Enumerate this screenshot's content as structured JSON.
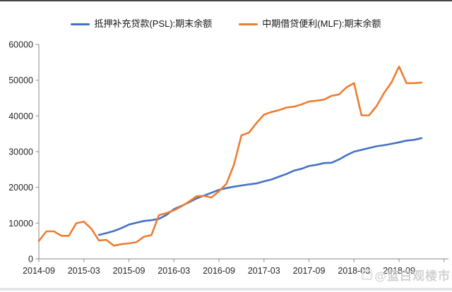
{
  "watermark": {
    "text": "@蓝白观楼市"
  },
  "chart_data": {
    "type": "line",
    "title": "",
    "legend_position": "top",
    "grid": false,
    "y_axis": {
      "min": 0,
      "max": 60000,
      "step": 10000,
      "tick_labels": [
        "0",
        "10000",
        "20000",
        "30000",
        "40000",
        "50000",
        "60000"
      ]
    },
    "x_axis": {
      "tick_labels": [
        "2014-09",
        "2015-03",
        "2015-09",
        "2016-03",
        "2016-09",
        "2017-03",
        "2017-09",
        "2018-03",
        "2018-09"
      ],
      "label_interval_months": 6
    },
    "categories": [
      "2014-09",
      "2014-10",
      "2014-11",
      "2014-12",
      "2015-01",
      "2015-02",
      "2015-03",
      "2015-04",
      "2015-05",
      "2015-06",
      "2015-07",
      "2015-08",
      "2015-09",
      "2015-10",
      "2015-11",
      "2015-12",
      "2016-01",
      "2016-02",
      "2016-03",
      "2016-04",
      "2016-05",
      "2016-06",
      "2016-07",
      "2016-08",
      "2016-09",
      "2016-10",
      "2016-11",
      "2016-12",
      "2017-01",
      "2017-02",
      "2017-03",
      "2017-04",
      "2017-05",
      "2017-06",
      "2017-07",
      "2017-08",
      "2017-09",
      "2017-10",
      "2017-11",
      "2017-12",
      "2018-01",
      "2018-02",
      "2018-03",
      "2018-04",
      "2018-05",
      "2018-06",
      "2018-07",
      "2018-08",
      "2018-09",
      "2018-10",
      "2018-11",
      "2018-12"
    ],
    "series": [
      {
        "name": "抵押补充贷款(PSL):期末余额",
        "color": "#4472C4",
        "values": [
          null,
          null,
          null,
          null,
          null,
          null,
          null,
          null,
          6700,
          7200,
          7800,
          8600,
          9590,
          10100,
          10600,
          10812,
          11200,
          12300,
          13917,
          14800,
          15800,
          16882,
          17700,
          18500,
          19303,
          19800,
          20200,
          20526,
          20850,
          21100,
          21687,
          22200,
          23000,
          23740,
          24700,
          25200,
          25970,
          26300,
          26800,
          26876,
          27800,
          29000,
          30000,
          30500,
          31000,
          31500,
          31800,
          32200,
          32600,
          33100,
          33300,
          33795
        ]
      },
      {
        "name": "中期借贷便利(MLF):期末余额",
        "color": "#ED7D31",
        "values": [
          5000,
          7695,
          7695,
          6445,
          6445,
          9995,
          10400,
          8400,
          5150,
          5300,
          3700,
          4100,
          4340,
          4665,
          6200,
          6658,
          12240,
          12800,
          13600,
          14670,
          16000,
          17500,
          17630,
          17170,
          18900,
          21000,
          26360,
          34573,
          35300,
          38000,
          40364,
          41100,
          41600,
          42345,
          42600,
          43200,
          44040,
          44250,
          44560,
          45620,
          46000,
          48000,
          49170,
          40170,
          40170,
          42740,
          46400,
          49400,
          53830,
          49170,
          49170,
          49315
        ]
      }
    ]
  }
}
